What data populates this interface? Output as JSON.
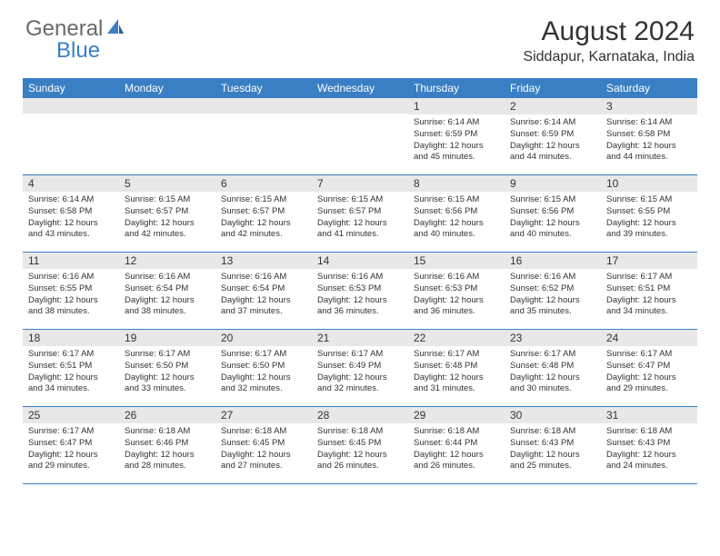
{
  "logo": {
    "text1": "General",
    "text2": "Blue"
  },
  "title": "August 2024",
  "location": "Siddapur, Karnataka, India",
  "colors": {
    "header_bg": "#3a7fc4",
    "header_text": "#ffffff",
    "strip_bg": "#e8e8e8",
    "border": "#3a7fc4",
    "body_text": "#333333",
    "logo_gray": "#6a6a6a",
    "logo_blue": "#3a7fc4"
  },
  "day_names": [
    "Sunday",
    "Monday",
    "Tuesday",
    "Wednesday",
    "Thursday",
    "Friday",
    "Saturday"
  ],
  "weeks": [
    [
      {
        "n": "",
        "sr": "",
        "ss": "",
        "dl": ""
      },
      {
        "n": "",
        "sr": "",
        "ss": "",
        "dl": ""
      },
      {
        "n": "",
        "sr": "",
        "ss": "",
        "dl": ""
      },
      {
        "n": "",
        "sr": "",
        "ss": "",
        "dl": ""
      },
      {
        "n": "1",
        "sr": "Sunrise: 6:14 AM",
        "ss": "Sunset: 6:59 PM",
        "dl": "Daylight: 12 hours and 45 minutes."
      },
      {
        "n": "2",
        "sr": "Sunrise: 6:14 AM",
        "ss": "Sunset: 6:59 PM",
        "dl": "Daylight: 12 hours and 44 minutes."
      },
      {
        "n": "3",
        "sr": "Sunrise: 6:14 AM",
        "ss": "Sunset: 6:58 PM",
        "dl": "Daylight: 12 hours and 44 minutes."
      }
    ],
    [
      {
        "n": "4",
        "sr": "Sunrise: 6:14 AM",
        "ss": "Sunset: 6:58 PM",
        "dl": "Daylight: 12 hours and 43 minutes."
      },
      {
        "n": "5",
        "sr": "Sunrise: 6:15 AM",
        "ss": "Sunset: 6:57 PM",
        "dl": "Daylight: 12 hours and 42 minutes."
      },
      {
        "n": "6",
        "sr": "Sunrise: 6:15 AM",
        "ss": "Sunset: 6:57 PM",
        "dl": "Daylight: 12 hours and 42 minutes."
      },
      {
        "n": "7",
        "sr": "Sunrise: 6:15 AM",
        "ss": "Sunset: 6:57 PM",
        "dl": "Daylight: 12 hours and 41 minutes."
      },
      {
        "n": "8",
        "sr": "Sunrise: 6:15 AM",
        "ss": "Sunset: 6:56 PM",
        "dl": "Daylight: 12 hours and 40 minutes."
      },
      {
        "n": "9",
        "sr": "Sunrise: 6:15 AM",
        "ss": "Sunset: 6:56 PM",
        "dl": "Daylight: 12 hours and 40 minutes."
      },
      {
        "n": "10",
        "sr": "Sunrise: 6:15 AM",
        "ss": "Sunset: 6:55 PM",
        "dl": "Daylight: 12 hours and 39 minutes."
      }
    ],
    [
      {
        "n": "11",
        "sr": "Sunrise: 6:16 AM",
        "ss": "Sunset: 6:55 PM",
        "dl": "Daylight: 12 hours and 38 minutes."
      },
      {
        "n": "12",
        "sr": "Sunrise: 6:16 AM",
        "ss": "Sunset: 6:54 PM",
        "dl": "Daylight: 12 hours and 38 minutes."
      },
      {
        "n": "13",
        "sr": "Sunrise: 6:16 AM",
        "ss": "Sunset: 6:54 PM",
        "dl": "Daylight: 12 hours and 37 minutes."
      },
      {
        "n": "14",
        "sr": "Sunrise: 6:16 AM",
        "ss": "Sunset: 6:53 PM",
        "dl": "Daylight: 12 hours and 36 minutes."
      },
      {
        "n": "15",
        "sr": "Sunrise: 6:16 AM",
        "ss": "Sunset: 6:53 PM",
        "dl": "Daylight: 12 hours and 36 minutes."
      },
      {
        "n": "16",
        "sr": "Sunrise: 6:16 AM",
        "ss": "Sunset: 6:52 PM",
        "dl": "Daylight: 12 hours and 35 minutes."
      },
      {
        "n": "17",
        "sr": "Sunrise: 6:17 AM",
        "ss": "Sunset: 6:51 PM",
        "dl": "Daylight: 12 hours and 34 minutes."
      }
    ],
    [
      {
        "n": "18",
        "sr": "Sunrise: 6:17 AM",
        "ss": "Sunset: 6:51 PM",
        "dl": "Daylight: 12 hours and 34 minutes."
      },
      {
        "n": "19",
        "sr": "Sunrise: 6:17 AM",
        "ss": "Sunset: 6:50 PM",
        "dl": "Daylight: 12 hours and 33 minutes."
      },
      {
        "n": "20",
        "sr": "Sunrise: 6:17 AM",
        "ss": "Sunset: 6:50 PM",
        "dl": "Daylight: 12 hours and 32 minutes."
      },
      {
        "n": "21",
        "sr": "Sunrise: 6:17 AM",
        "ss": "Sunset: 6:49 PM",
        "dl": "Daylight: 12 hours and 32 minutes."
      },
      {
        "n": "22",
        "sr": "Sunrise: 6:17 AM",
        "ss": "Sunset: 6:48 PM",
        "dl": "Daylight: 12 hours and 31 minutes."
      },
      {
        "n": "23",
        "sr": "Sunrise: 6:17 AM",
        "ss": "Sunset: 6:48 PM",
        "dl": "Daylight: 12 hours and 30 minutes."
      },
      {
        "n": "24",
        "sr": "Sunrise: 6:17 AM",
        "ss": "Sunset: 6:47 PM",
        "dl": "Daylight: 12 hours and 29 minutes."
      }
    ],
    [
      {
        "n": "25",
        "sr": "Sunrise: 6:17 AM",
        "ss": "Sunset: 6:47 PM",
        "dl": "Daylight: 12 hours and 29 minutes."
      },
      {
        "n": "26",
        "sr": "Sunrise: 6:18 AM",
        "ss": "Sunset: 6:46 PM",
        "dl": "Daylight: 12 hours and 28 minutes."
      },
      {
        "n": "27",
        "sr": "Sunrise: 6:18 AM",
        "ss": "Sunset: 6:45 PM",
        "dl": "Daylight: 12 hours and 27 minutes."
      },
      {
        "n": "28",
        "sr": "Sunrise: 6:18 AM",
        "ss": "Sunset: 6:45 PM",
        "dl": "Daylight: 12 hours and 26 minutes."
      },
      {
        "n": "29",
        "sr": "Sunrise: 6:18 AM",
        "ss": "Sunset: 6:44 PM",
        "dl": "Daylight: 12 hours and 26 minutes."
      },
      {
        "n": "30",
        "sr": "Sunrise: 6:18 AM",
        "ss": "Sunset: 6:43 PM",
        "dl": "Daylight: 12 hours and 25 minutes."
      },
      {
        "n": "31",
        "sr": "Sunrise: 6:18 AM",
        "ss": "Sunset: 6:43 PM",
        "dl": "Daylight: 12 hours and 24 minutes."
      }
    ]
  ]
}
